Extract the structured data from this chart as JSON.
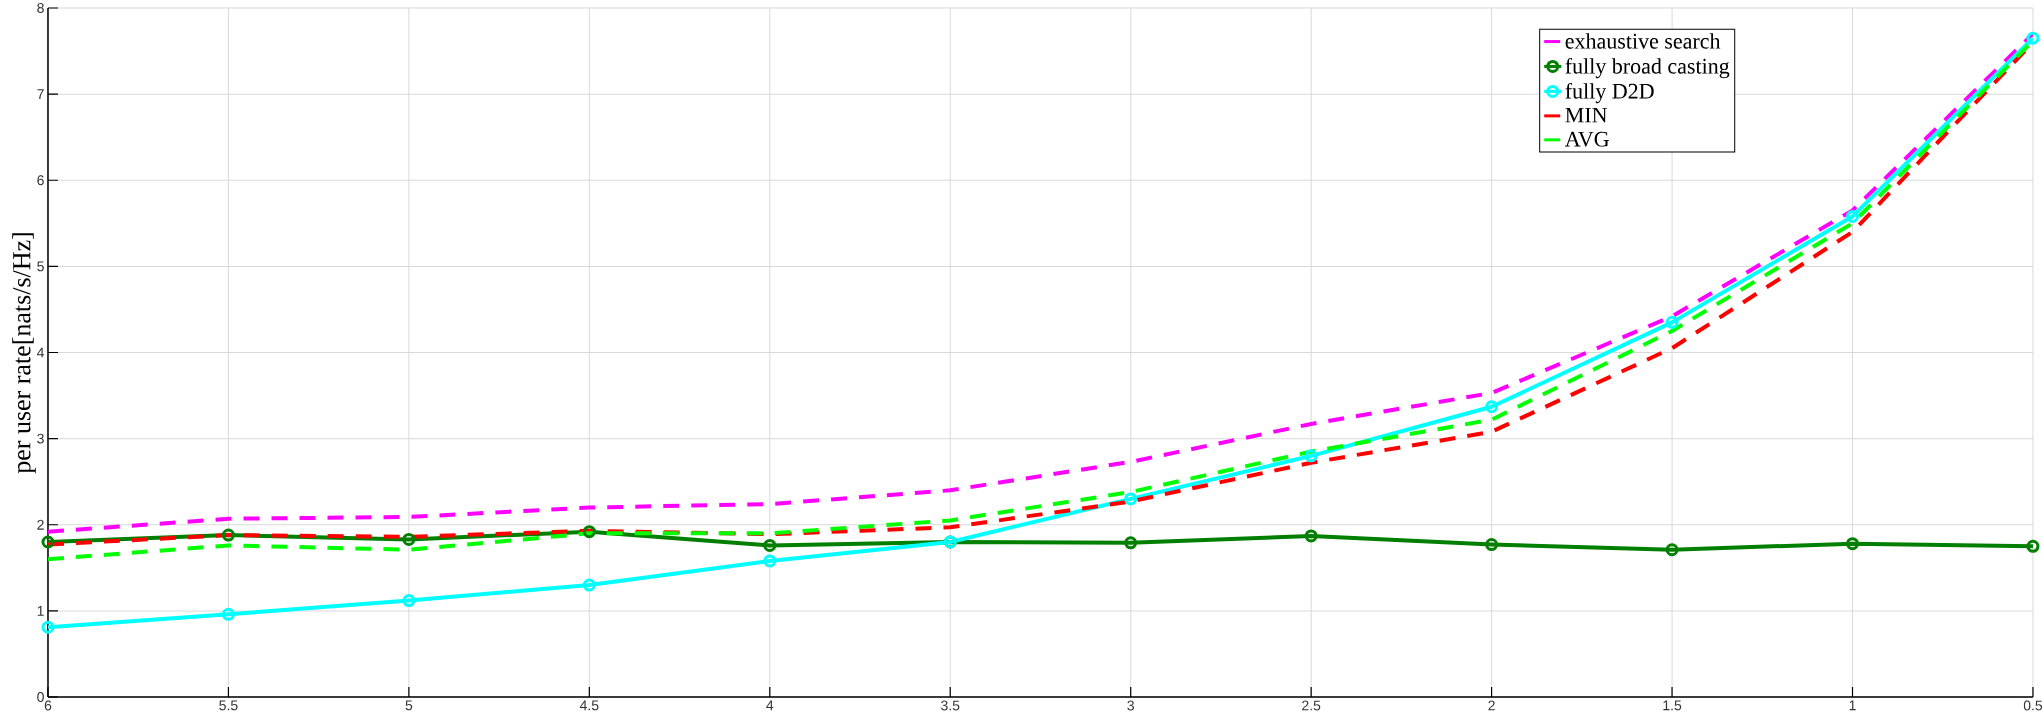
{
  "chart_data": {
    "type": "line",
    "ylabel": "per user rate[nats/s/Hz]",
    "x": [
      6,
      5.5,
      5,
      4.5,
      4,
      3.5,
      3,
      2.5,
      2,
      1.5,
      1,
      0.5
    ],
    "xlim": [
      6,
      0.5
    ],
    "xticks": [
      6,
      5.5,
      5,
      4.5,
      4,
      3.5,
      3,
      2.5,
      2,
      1.5,
      1,
      0.5
    ],
    "ylim": [
      0,
      8
    ],
    "yticks": [
      0,
      1,
      2,
      3,
      4,
      5,
      6,
      7,
      8
    ],
    "grid": true,
    "legend": "top right",
    "series": [
      {
        "name": "exhaustive search",
        "color": "#ff00ff",
        "line_style": "dashed",
        "marker": "none",
        "values": [
          1.92,
          2.07,
          2.09,
          2.2,
          2.24,
          2.4,
          2.73,
          3.17,
          3.53,
          4.42,
          5.65,
          7.7
        ]
      },
      {
        "name": "fully broad casting",
        "color": "#007f00",
        "line_style": "solid",
        "marker": "circle",
        "values": [
          1.8,
          1.88,
          1.83,
          1.92,
          1.76,
          1.8,
          1.79,
          1.87,
          1.77,
          1.71,
          1.78,
          1.75
        ]
      },
      {
        "name": "fully D2D",
        "color": "#00ffff",
        "line_style": "solid",
        "marker": "circle",
        "values": [
          0.81,
          0.96,
          1.12,
          1.3,
          1.58,
          1.8,
          2.3,
          2.8,
          3.37,
          4.35,
          5.58,
          7.65
        ]
      },
      {
        "name": "MIN",
        "color": "#ff0000",
        "line_style": "dashed",
        "marker": "none",
        "values": [
          1.77,
          1.88,
          1.86,
          1.93,
          1.89,
          1.97,
          2.27,
          2.72,
          3.08,
          4.05,
          5.4,
          7.6
        ]
      },
      {
        "name": "AVG",
        "color": "#00ff00",
        "line_style": "dashed",
        "marker": "none",
        "values": [
          1.6,
          1.76,
          1.71,
          1.9,
          1.9,
          2.05,
          2.38,
          2.85,
          3.22,
          4.25,
          5.5,
          7.62
        ]
      }
    ]
  }
}
